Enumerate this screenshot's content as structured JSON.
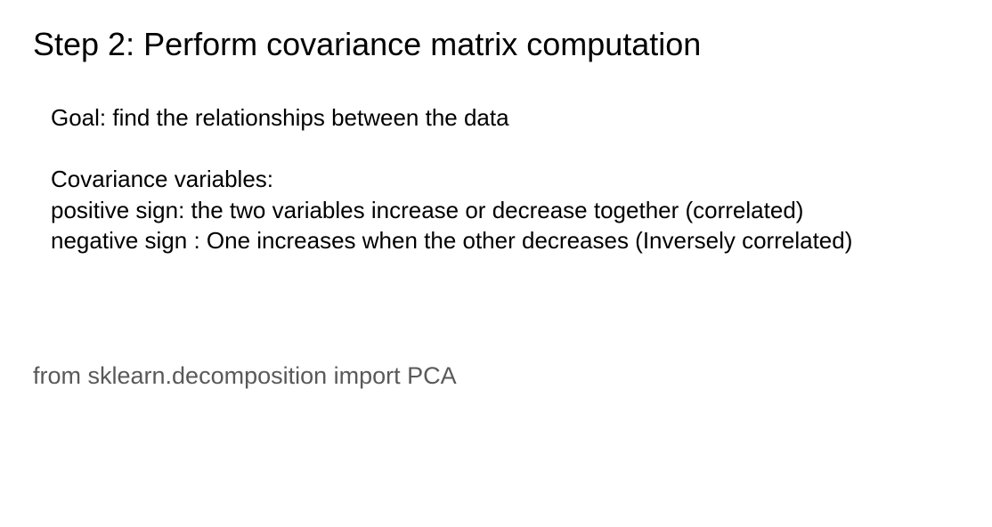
{
  "slide": {
    "title": "Step 2: Perform covariance matrix computation",
    "goal": "Goal: find the relationships between the data",
    "covariance_heading": "Covariance variables:",
    "positive_line": "positive sign: the two variables increase or decrease together (correlated)",
    "negative_line": "negative sign : One increases when the other decreases (Inversely correlated)",
    "code_line": "from sklearn.decomposition import PCA"
  },
  "colors": {
    "text": "#000000",
    "code_text": "#595959",
    "background": "#ffffff"
  }
}
